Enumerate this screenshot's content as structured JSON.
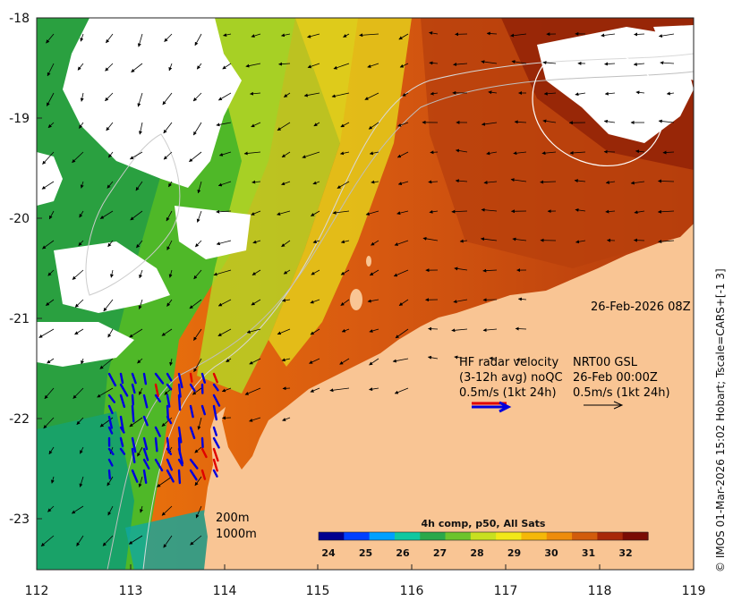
{
  "date_label": "26-Feb-2026 08Z",
  "legend": {
    "line1_left": "HF radar velocity",
    "line1_right": "NRT00 GSL",
    "line2_left": "(3-12h avg) noQC",
    "line2_right": "26-Feb 00:00Z",
    "line3_left": "0.5m/s (1kt 24h)",
    "line3_right": "0.5m/s (1kt 24h)"
  },
  "isobaths": [
    "200m",
    "1000m"
  ],
  "colorbar": {
    "title": "4h comp, p50, All Sats",
    "ticks": [
      "24",
      "25",
      "26",
      "27",
      "28",
      "29",
      "30",
      "31",
      "32"
    ],
    "colors": [
      "#00008f",
      "#0040ff",
      "#00a0ff",
      "#10c8a0",
      "#2aa84a",
      "#6cc42c",
      "#c8e020",
      "#f2e818",
      "#f5b808",
      "#ee8c0a",
      "#d25c0c",
      "#a82808",
      "#7a0c04"
    ]
  },
  "axes": {
    "lon_ticks": [
      "112",
      "113",
      "114",
      "115",
      "116",
      "117",
      "118",
      "119"
    ],
    "lat_ticks": [
      "-18",
      "-19",
      "-20",
      "-21",
      "-22",
      "-23"
    ]
  },
  "credit": "© IMOS 01-Mar-2026 15:02 Hobart; Tscale=CARS+[-1 3]",
  "colors": {
    "land": "#f9c594",
    "no_data": "#ffffff",
    "hf_radar": "#0000dd",
    "hf_radar_flag": "#e00000"
  }
}
